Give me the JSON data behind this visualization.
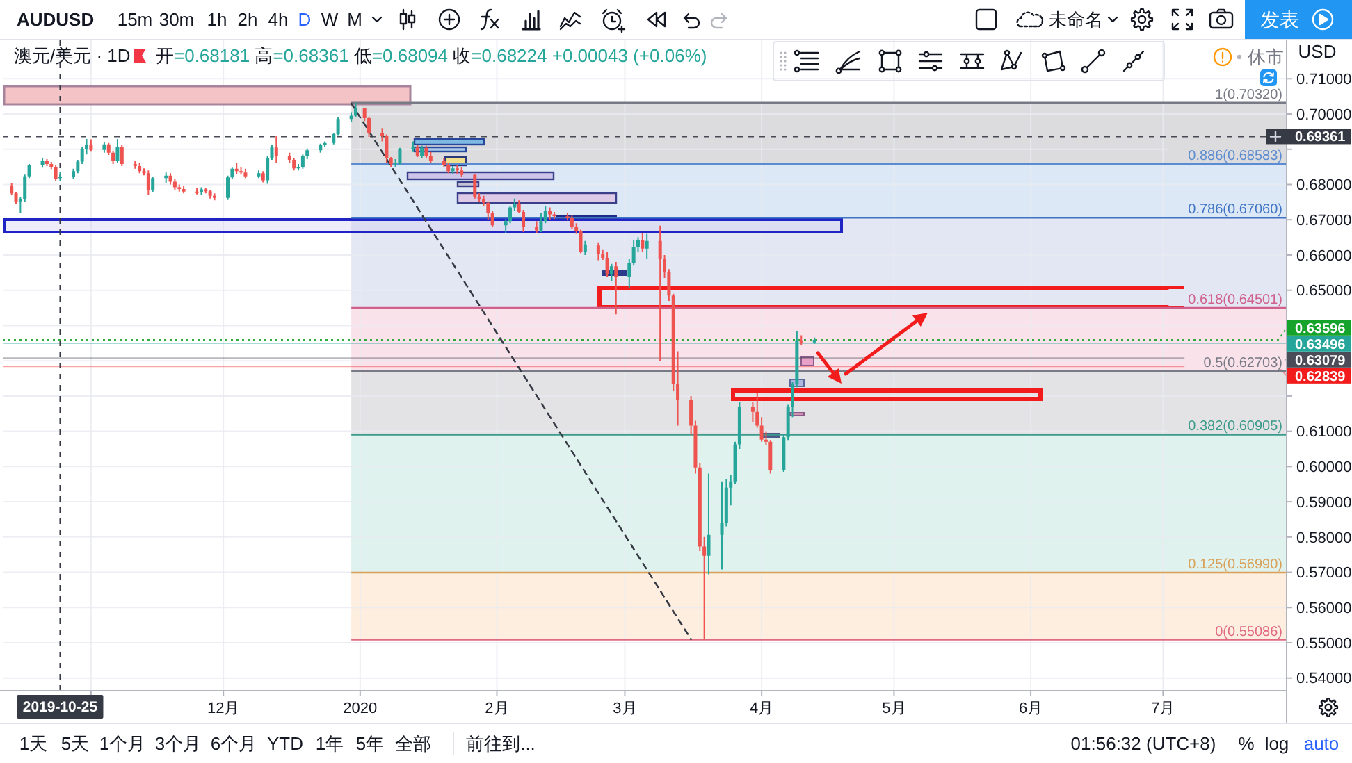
{
  "chart_data": {
    "type": "candlestick",
    "title": "AUDUSD",
    "subtitle": "澳元/美元 · 1D",
    "annotations": [
      "15m",
      "30m",
      "1h",
      "2h",
      "4h",
      "D",
      "W",
      "M",
      "未命名",
      "发表",
      "开=0.68181 高=0.68361 低=0.68094 收=0.68224 +0.00043 (+0.06%)",
      "休市",
      "USD",
      "1天",
      "5天",
      "1个月",
      "3个月",
      "6个月",
      "YTD",
      "1年",
      "5年",
      "全部",
      "前往到...",
      "01:56:32 (UTC+8)",
      "%",
      "log",
      "auto"
    ],
    "x": [
      "2019-10-14",
      "2019-10-15",
      "2019-10-16",
      "2019-10-17",
      "2019-10-18",
      "2019-10-21",
      "2019-10-22",
      "2019-10-23",
      "2019-10-24",
      "2019-10-25",
      "2019-10-28",
      "2019-10-29",
      "2019-10-30",
      "2019-10-31",
      "2019-11-01",
      "2019-11-04",
      "2019-11-05",
      "2019-11-06",
      "2019-11-07",
      "2019-11-08",
      "2019-11-11",
      "2019-11-12",
      "2019-11-13",
      "2019-11-14",
      "2019-11-15",
      "2019-11-18",
      "2019-11-19",
      "2019-11-20",
      "2019-11-21",
      "2019-11-22",
      "2019-11-25",
      "2019-11-26",
      "2019-11-27",
      "2019-11-28",
      "2019-11-29",
      "2019-12-02",
      "2019-12-03",
      "2019-12-04",
      "2019-12-05",
      "2019-12-06",
      "2019-12-09",
      "2019-12-10",
      "2019-12-11",
      "2019-12-12",
      "2019-12-13",
      "2019-12-16",
      "2019-12-17",
      "2019-12-18",
      "2019-12-19",
      "2019-12-20",
      "2019-12-23",
      "2019-12-24",
      "2019-12-26",
      "2019-12-27",
      "2019-12-30",
      "2019-12-31",
      "2020-01-02",
      "2020-01-03",
      "2020-01-06",
      "2020-01-07",
      "2020-01-08",
      "2020-01-09",
      "2020-01-10",
      "2020-01-13",
      "2020-01-14",
      "2020-01-15",
      "2020-01-16",
      "2020-01-17",
      "2020-01-20",
      "2020-01-21",
      "2020-01-22",
      "2020-01-23",
      "2020-01-24",
      "2020-01-27",
      "2020-01-28",
      "2020-01-29",
      "2020-01-30",
      "2020-01-31",
      "2020-02-03",
      "2020-02-04",
      "2020-02-05",
      "2020-02-06",
      "2020-02-07",
      "2020-02-10",
      "2020-02-11",
      "2020-02-12",
      "2020-02-13",
      "2020-02-14",
      "2020-02-17",
      "2020-02-18",
      "2020-02-19",
      "2020-02-20",
      "2020-02-21",
      "2020-02-24",
      "2020-02-25",
      "2020-02-26",
      "2020-02-27",
      "2020-02-28",
      "2020-03-02",
      "2020-03-03",
      "2020-03-04",
      "2020-03-05",
      "2020-03-06",
      "2020-03-09",
      "2020-03-10",
      "2020-03-11",
      "2020-03-12",
      "2020-03-13",
      "2020-03-16",
      "2020-03-17",
      "2020-03-18",
      "2020-03-19",
      "2020-03-20",
      "2020-03-23",
      "2020-03-24",
      "2020-03-25",
      "2020-03-26",
      "2020-03-27",
      "2020-03-30",
      "2020-03-31",
      "2020-04-01",
      "2020-04-02",
      "2020-04-03",
      "2020-04-06",
      "2020-04-07",
      "2020-04-08",
      "2020-04-09",
      "2020-04-10",
      "2020-04-13"
    ],
    "ohlc": [
      [
        0.6797,
        0.6803,
        0.677,
        0.6775
      ],
      [
        0.6775,
        0.6779,
        0.6744,
        0.6752
      ],
      [
        0.6752,
        0.6764,
        0.6719,
        0.6758
      ],
      [
        0.6758,
        0.6828,
        0.675,
        0.6823
      ],
      [
        0.6823,
        0.6858,
        0.6818,
        0.6854
      ],
      [
        0.6854,
        0.6876,
        0.6848,
        0.6868
      ],
      [
        0.6868,
        0.6872,
        0.6852,
        0.6858
      ],
      [
        0.6858,
        0.6864,
        0.6844,
        0.685
      ],
      [
        0.685,
        0.6856,
        0.681,
        0.6816
      ],
      [
        0.68181,
        0.68361,
        0.68094,
        0.68224
      ],
      [
        0.6822,
        0.6845,
        0.6815,
        0.6838
      ],
      [
        0.6838,
        0.687,
        0.6832,
        0.6865
      ],
      [
        0.6865,
        0.6906,
        0.6858,
        0.69
      ],
      [
        0.69,
        0.6929,
        0.6885,
        0.6912
      ],
      [
        0.6912,
        0.6928,
        0.6893,
        0.6898
      ],
      [
        0.6898,
        0.692,
        0.689,
        0.6914
      ],
      [
        0.6914,
        0.6918,
        0.6884,
        0.689
      ],
      [
        0.689,
        0.6896,
        0.6858,
        0.6866
      ],
      [
        0.6866,
        0.6929,
        0.686,
        0.6906
      ],
      [
        0.6906,
        0.6912,
        0.6852,
        0.6858
      ],
      [
        0.6858,
        0.6866,
        0.6845,
        0.6852
      ],
      [
        0.6852,
        0.6862,
        0.6832,
        0.6838
      ],
      [
        0.6838,
        0.6846,
        0.6826,
        0.6832
      ],
      [
        0.6832,
        0.684,
        0.677,
        0.6785
      ],
      [
        0.6785,
        0.6822,
        0.6778,
        0.6818
      ],
      [
        0.6818,
        0.6834,
        0.6805,
        0.6825
      ],
      [
        0.6825,
        0.6832,
        0.68,
        0.6808
      ],
      [
        0.6808,
        0.6815,
        0.6785,
        0.6792
      ],
      [
        0.6792,
        0.68,
        0.678,
        0.6787
      ],
      [
        0.6787,
        0.6795,
        0.6775,
        0.678
      ],
      [
        0.678,
        0.679,
        0.6772,
        0.6778
      ],
      [
        0.6778,
        0.6792,
        0.677,
        0.6786
      ],
      [
        0.6786,
        0.679,
        0.6775,
        0.6781
      ],
      [
        0.6781,
        0.6785,
        0.676,
        0.6768
      ],
      [
        0.6768,
        0.6775,
        0.6755,
        0.6762
      ],
      [
        0.6762,
        0.6825,
        0.6756,
        0.682
      ],
      [
        0.682,
        0.6848,
        0.6815,
        0.6845
      ],
      [
        0.6845,
        0.686,
        0.683,
        0.6838
      ],
      [
        0.6838,
        0.685,
        0.6828,
        0.6834
      ],
      [
        0.6834,
        0.6845,
        0.6818,
        0.6823
      ],
      [
        0.6823,
        0.684,
        0.6818,
        0.6832
      ],
      [
        0.6832,
        0.6838,
        0.6806,
        0.6812
      ],
      [
        0.6812,
        0.688,
        0.6802,
        0.6876
      ],
      [
        0.6876,
        0.6912,
        0.687,
        0.6905
      ],
      [
        0.6905,
        0.6938,
        0.686,
        0.688
      ],
      [
        0.688,
        0.689,
        0.6862,
        0.687
      ],
      [
        0.687,
        0.6874,
        0.684,
        0.6846
      ],
      [
        0.6846,
        0.6858,
        0.684,
        0.685
      ],
      [
        0.685,
        0.6885,
        0.6845,
        0.688
      ],
      [
        0.688,
        0.6902,
        0.6872,
        0.6897
      ],
      [
        0.6897,
        0.6916,
        0.689,
        0.6912
      ],
      [
        0.6912,
        0.6922,
        0.6906,
        0.6918
      ],
      [
        0.6918,
        0.6946,
        0.6914,
        0.6943
      ],
      [
        0.6943,
        0.699,
        0.694,
        0.6986
      ],
      [
        0.6986,
        0.7005,
        0.6978,
        0.6995
      ],
      [
        0.6995,
        0.7032,
        0.699,
        0.7016
      ],
      [
        0.7016,
        0.7018,
        0.698,
        0.6988
      ],
      [
        0.6988,
        0.6992,
        0.6935,
        0.6946
      ],
      [
        0.6946,
        0.696,
        0.6922,
        0.6938
      ],
      [
        0.6938,
        0.6942,
        0.6862,
        0.6874
      ],
      [
        0.6874,
        0.6878,
        0.685,
        0.6858
      ],
      [
        0.6858,
        0.6872,
        0.685,
        0.6862
      ],
      [
        0.6862,
        0.6904,
        0.6855,
        0.69
      ],
      [
        0.69,
        0.6922,
        0.6892,
        0.6905
      ],
      [
        0.6905,
        0.6912,
        0.6878,
        0.6882
      ],
      [
        0.6882,
        0.691,
        0.6876,
        0.6904
      ],
      [
        0.6904,
        0.691,
        0.6876,
        0.688
      ],
      [
        0.688,
        0.6892,
        0.6862,
        0.6868
      ],
      [
        0.6868,
        0.6875,
        0.685,
        0.6856
      ],
      [
        0.6856,
        0.6862,
        0.6832,
        0.6838
      ],
      [
        0.6838,
        0.6852,
        0.683,
        0.6846
      ],
      [
        0.6846,
        0.6856,
        0.683,
        0.684
      ],
      [
        0.684,
        0.685,
        0.6822,
        0.6827
      ],
      [
        0.6827,
        0.683,
        0.676,
        0.6766
      ],
      [
        0.6766,
        0.6775,
        0.675,
        0.6758
      ],
      [
        0.6758,
        0.6768,
        0.674,
        0.6748
      ],
      [
        0.6748,
        0.6752,
        0.67,
        0.6718
      ],
      [
        0.6718,
        0.6725,
        0.668,
        0.6684
      ],
      [
        0.6684,
        0.6702,
        0.6662,
        0.6696
      ],
      [
        0.6696,
        0.674,
        0.669,
        0.6735
      ],
      [
        0.6735,
        0.676,
        0.6725,
        0.6745
      ],
      [
        0.6745,
        0.6755,
        0.6718,
        0.6722
      ],
      [
        0.6722,
        0.6728,
        0.6665,
        0.668
      ],
      [
        0.668,
        0.6696,
        0.6662,
        0.667
      ],
      [
        0.667,
        0.672,
        0.6665,
        0.6696
      ],
      [
        0.6696,
        0.6738,
        0.669,
        0.6725
      ],
      [
        0.6725,
        0.6735,
        0.67,
        0.6715
      ],
      [
        0.6715,
        0.6722,
        0.6702,
        0.671
      ],
      [
        0.671,
        0.6718,
        0.6698,
        0.6705
      ],
      [
        0.6705,
        0.6712,
        0.6675,
        0.668
      ],
      [
        0.668,
        0.669,
        0.666,
        0.6668
      ],
      [
        0.6668,
        0.6672,
        0.6605,
        0.661
      ],
      [
        0.661,
        0.664,
        0.66,
        0.663
      ],
      [
        0.6627,
        0.6636,
        0.6585,
        0.6602
      ],
      [
        0.6602,
        0.6614,
        0.6586,
        0.6592
      ],
      [
        0.6592,
        0.661,
        0.6538,
        0.6545
      ],
      [
        0.6545,
        0.6575,
        0.6525,
        0.6568
      ],
      [
        0.6568,
        0.658,
        0.6432,
        0.6538
      ],
      [
        0.6538,
        0.659,
        0.6505,
        0.6577
      ],
      [
        0.6577,
        0.6643,
        0.657,
        0.6623
      ],
      [
        0.6623,
        0.665,
        0.661,
        0.6643
      ],
      [
        0.6643,
        0.6662,
        0.6608,
        0.6618
      ],
      [
        0.6618,
        0.666,
        0.659,
        0.664
      ],
      [
        0.664,
        0.6683,
        0.63,
        0.659
      ],
      [
        0.659,
        0.66,
        0.6535,
        0.6551
      ],
      [
        0.6551,
        0.656,
        0.647,
        0.6485
      ],
      [
        0.6485,
        0.649,
        0.6215,
        0.6235
      ],
      [
        0.6235,
        0.6327,
        0.6116,
        0.6188
      ],
      [
        0.6188,
        0.62,
        0.609,
        0.6116
      ],
      [
        0.6116,
        0.613,
        0.598,
        0.5997
      ],
      [
        0.5997,
        0.601,
        0.576,
        0.5773
      ],
      [
        0.5773,
        0.58,
        0.5509,
        0.5747
      ],
      [
        0.5747,
        0.598,
        0.5694,
        0.5806
      ],
      [
        0.5806,
        0.5958,
        0.5708,
        0.5839
      ],
      [
        0.5839,
        0.5965,
        0.583,
        0.594
      ],
      [
        0.594,
        0.5975,
        0.589,
        0.5958
      ],
      [
        0.5958,
        0.607,
        0.595,
        0.6063
      ],
      [
        0.6063,
        0.6182,
        0.605,
        0.6169
      ],
      [
        0.6169,
        0.6182,
        0.6125,
        0.6155
      ],
      [
        0.6155,
        0.6208,
        0.611,
        0.6116
      ],
      [
        0.6116,
        0.614,
        0.607,
        0.6076
      ],
      [
        0.6076,
        0.61,
        0.606,
        0.607
      ],
      [
        0.607,
        0.6075,
        0.598,
        0.5991
      ],
      [
        0.5991,
        0.609,
        0.5985,
        0.6083
      ],
      [
        0.6083,
        0.6175,
        0.6075,
        0.6169
      ],
      [
        0.6169,
        0.624,
        0.614,
        0.6235
      ],
      [
        0.6235,
        0.6385,
        0.6225,
        0.6358
      ],
      [
        0.6358,
        0.6372,
        0.6345,
        0.6352
      ],
      [
        0.6352,
        0.6366,
        0.6348,
        0.63596
      ]
    ],
    "series": [
      {
        "type": "line",
        "x": [
          "2019-12-30",
          "2020-03-16"
        ],
        "values": [
          0.703,
          0.551
        ],
        "color": "#363a45",
        "line_style": "dashed"
      }
    ],
    "bands": [
      {
        "axis": "y",
        "from": 0.68583,
        "to": 0.7032,
        "color": "#dcdcde"
      },
      {
        "axis": "y",
        "from": 0.6706,
        "to": 0.68583,
        "color": "#dde8f6"
      },
      {
        "axis": "y",
        "from": 0.64501,
        "to": 0.6706,
        "color": "#e3e7f4"
      },
      {
        "axis": "y",
        "from": 0.62703,
        "to": 0.64501,
        "color": "#f9e2ea"
      },
      {
        "axis": "y",
        "from": 0.60905,
        "to": 0.62703,
        "color": "#e3e3e5"
      },
      {
        "axis": "y",
        "from": 0.5699,
        "to": 0.60905,
        "color": "#dff2ee"
      },
      {
        "axis": "y",
        "from": 0.55086,
        "to": 0.5699,
        "color": "#fdeedf"
      }
    ],
    "ref_lines": [
      {
        "axis": "y",
        "value": 0.7032,
        "label": "1(0.70320)",
        "color": "#787b86"
      },
      {
        "axis": "y",
        "value": 0.68583,
        "label": "0.886(0.68583)",
        "color": "#5b8bd0"
      },
      {
        "axis": "y",
        "value": 0.6706,
        "label": "0.786(0.67060)",
        "color": "#3f74c5"
      },
      {
        "axis": "y",
        "value": 0.64501,
        "label": "0.618(0.64501)",
        "color": "#d0608c"
      },
      {
        "axis": "y",
        "value": 0.62703,
        "label": "0.5(0.62703)",
        "color": "#787b86"
      },
      {
        "axis": "y",
        "value": 0.60905,
        "label": "0.382(0.60905)",
        "color": "#3a9a8c"
      },
      {
        "axis": "y",
        "value": 0.5699,
        "label": "0.125(0.56990)",
        "color": "#d9a058"
      },
      {
        "axis": "y",
        "value": 0.55086,
        "label": "0(0.55086)",
        "color": "#e06a84"
      },
      {
        "axis": "y",
        "value": 0.69361,
        "label": "0.69361",
        "color": "#363a45",
        "line_style": "dashed"
      },
      {
        "axis": "y",
        "value": 0.63596,
        "label": "0.63596",
        "color": "#16a32b",
        "line_style": "dotted"
      },
      {
        "axis": "y",
        "value": 0.63496,
        "label": "0.63496",
        "color": "#26a69a"
      },
      {
        "axis": "y",
        "value": 0.63079,
        "label": "0.63079",
        "color": "#4a4d57"
      },
      {
        "axis": "y",
        "value": 0.62839,
        "label": "0.62839",
        "color": "#f21c1c"
      },
      {
        "axis": "x",
        "value": "2019-10-25",
        "label": "2019-10-25",
        "color": "#363a45",
        "line_style": "dashed"
      }
    ],
    "xlim": [
      "2019-10-12",
      "2020-07-29"
    ],
    "xticks": [
      {
        "value": "2019-11-01",
        "label": null
      },
      {
        "value": "2019-12-01",
        "label": "12月"
      },
      {
        "value": "2020-01-01",
        "label": "2020"
      },
      {
        "value": "2020-02-01",
        "label": "2月"
      },
      {
        "value": "2020-03-01",
        "label": "3月"
      },
      {
        "value": "2020-04-01",
        "label": "4月"
      },
      {
        "value": "2020-05-01",
        "label": "5月"
      },
      {
        "value": "2020-06-01",
        "label": "6月"
      },
      {
        "value": "2020-07-01",
        "label": "7月"
      }
    ],
    "ylim": [
      0.5364,
      0.7209
    ],
    "yticks": [
      {
        "value": 0.54,
        "label": "0.54000"
      },
      {
        "value": 0.55,
        "label": "0.55000"
      },
      {
        "value": 0.56,
        "label": "0.56000"
      },
      {
        "value": 0.57,
        "label": "0.57000"
      },
      {
        "value": 0.58,
        "label": "0.58000"
      },
      {
        "value": 0.59,
        "label": "0.59000"
      },
      {
        "value": 0.6,
        "label": "0.60000"
      },
      {
        "value": 0.61,
        "label": "0.61000"
      },
      {
        "value": 0.62,
        "label": null
      },
      {
        "value": 0.63,
        "label": null
      },
      {
        "value": 0.64,
        "label": null
      },
      {
        "value": 0.65,
        "label": "0.65000"
      },
      {
        "value": 0.66,
        "label": "0.66000"
      },
      {
        "value": 0.67,
        "label": "0.67000"
      },
      {
        "value": 0.68,
        "label": "0.68000"
      },
      {
        "value": 0.69,
        "label": null
      },
      {
        "value": 0.7,
        "label": "0.70000"
      },
      {
        "value": 0.71,
        "label": "0.71000"
      }
    ],
    "grid": true
  }
}
